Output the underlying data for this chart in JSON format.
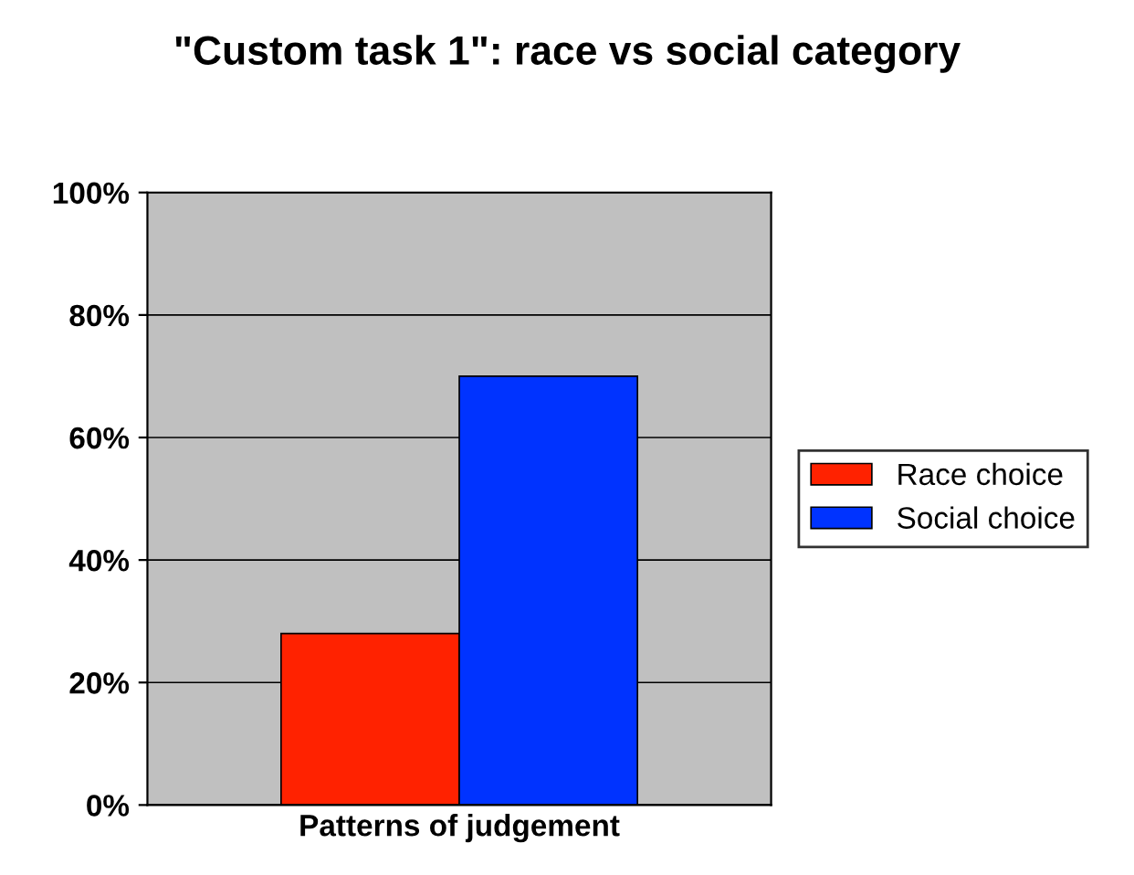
{
  "chart_data": {
    "type": "bar",
    "title": "\"Custom task 1\": race vs social category",
    "categories": [
      "Patterns of judgement"
    ],
    "series": [
      {
        "name": "Race choice",
        "color": "#ff2200",
        "values": [
          28
        ]
      },
      {
        "name": "Social choice",
        "color": "#0033ff",
        "values": [
          70
        ]
      }
    ],
    "ylim": [
      0,
      100
    ],
    "yticks": [
      {
        "value": 0,
        "label": "0%"
      },
      {
        "value": 20,
        "label": "20%"
      },
      {
        "value": 40,
        "label": "40%"
      },
      {
        "value": 60,
        "label": "60%"
      },
      {
        "value": 80,
        "label": "80%"
      },
      {
        "value": 100,
        "label": "100%"
      }
    ],
    "grid": "y",
    "legend": "right"
  }
}
